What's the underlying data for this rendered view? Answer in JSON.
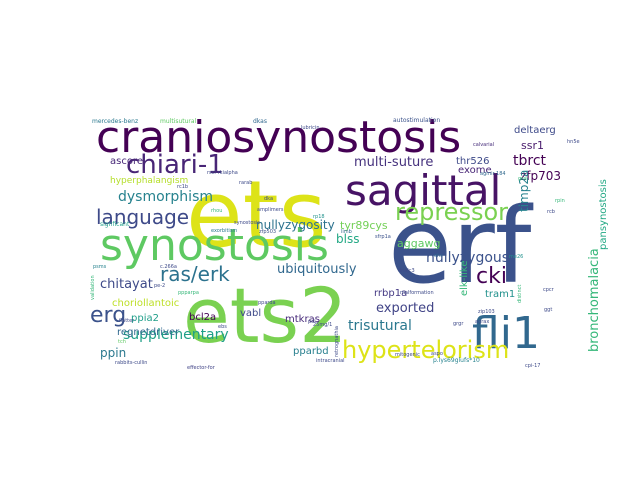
{
  "words": [
    {
      "text": "erf",
      "color": "#3b528b"
    },
    {
      "text": "ets",
      "color": "#dde318"
    },
    {
      "text": "ets2",
      "color": "#7ad151"
    },
    {
      "text": "craniosynostosis",
      "color": "#440154"
    },
    {
      "text": "synostosis",
      "color": "#5ec962"
    },
    {
      "text": "sagittal",
      "color": "#471365"
    },
    {
      "text": "fli1",
      "color": "#31688e"
    },
    {
      "text": "hypertelorism",
      "color": "#dde318"
    },
    {
      "text": "chiari-1",
      "color": "#482576"
    },
    {
      "text": "repressor",
      "color": "#7ad151"
    },
    {
      "text": "language",
      "color": "#3e4a89"
    },
    {
      "text": "ras/erk",
      "color": "#2c728e"
    },
    {
      "text": "erg",
      "color": "#3b528b"
    },
    {
      "text": "cki",
      "color": "#440154"
    },
    {
      "text": "dysmorphism",
      "color": "#26828e"
    },
    {
      "text": "bronchomalacia",
      "color": "#35b779"
    },
    {
      "text": "trisutural",
      "color": "#2a788e"
    },
    {
      "text": "supplementary",
      "color": "#1fa088"
    },
    {
      "text": "nullyzygous",
      "color": "#3b528b"
    },
    {
      "text": "multi-suture",
      "color": "#46327e"
    },
    {
      "text": "ubiquitously",
      "color": "#31688e"
    },
    {
      "text": "tbrct",
      "color": "#440154"
    },
    {
      "text": "exported",
      "color": "#414487"
    },
    {
      "text": "chitayat",
      "color": "#3e4a89"
    },
    {
      "text": "zfp703",
      "color": "#440154"
    },
    {
      "text": "timp2a",
      "color": "#26828e"
    },
    {
      "text": "nullyzygosity",
      "color": "#2c728e"
    },
    {
      "text": "ppin",
      "color": "#2a788e"
    },
    {
      "text": "blss",
      "color": "#22a884"
    },
    {
      "text": "aggawg",
      "color": "#5ec962"
    },
    {
      "text": "tyr89cys",
      "color": "#73d056"
    },
    {
      "text": "ssr1",
      "color": "#481a6c"
    },
    {
      "text": "deltaerg",
      "color": "#3e4a89"
    },
    {
      "text": "ascore",
      "color": "#482878"
    },
    {
      "text": "thr526",
      "color": "#3e4a89"
    },
    {
      "text": "exome",
      "color": "#482576"
    },
    {
      "text": "elk-like",
      "color": "#35b779"
    },
    {
      "text": "hyperphalangism",
      "color": "#b5de2b"
    },
    {
      "text": "regnetdriver",
      "color": "#31688e"
    },
    {
      "text": "ppia2",
      "color": "#1f9e89"
    },
    {
      "text": "choriollantoic",
      "color": "#bddf26"
    },
    {
      "text": "bcl2a",
      "color": "#440154"
    },
    {
      "text": "mtkras",
      "color": "#472a7a"
    },
    {
      "text": "pparbd",
      "color": "#277f8e"
    },
    {
      "text": "rrbp1a",
      "color": "#443983"
    },
    {
      "text": "tram1",
      "color": "#21918c"
    },
    {
      "text": "vabl",
      "color": "#3e4a89"
    },
    {
      "text": "pansynostosis",
      "color": "#22a884"
    },
    {
      "text": "multisutural",
      "color": "#5ec962"
    },
    {
      "text": "mercedes-benz",
      "color": "#2a788e"
    },
    {
      "text": "dkas",
      "color": "#31688e"
    },
    {
      "text": "autostimulation",
      "color": "#3b528b"
    },
    {
      "text": "calvarial",
      "color": "#472d7b"
    },
    {
      "text": "lubricin",
      "color": "#3e4a89"
    },
    {
      "text": "amplimers",
      "color": "#3e4a89"
    },
    {
      "text": "rhou",
      "color": "#35b779"
    },
    {
      "text": "signficant",
      "color": "#1fa088"
    },
    {
      "text": "exorbitism",
      "color": "#2a788e"
    },
    {
      "text": "zfp503",
      "color": "#3b528b"
    },
    {
      "text": "validation",
      "color": "#35b779"
    },
    {
      "text": "psms",
      "color": "#26828e"
    },
    {
      "text": "c.266a",
      "color": "#3e4a89"
    },
    {
      "text": "ppparpa",
      "color": "#35b779"
    },
    {
      "text": "pparda",
      "color": "#3e4a89"
    },
    {
      "text": "pel",
      "color": "#414487"
    },
    {
      "text": "retrognathia",
      "color": "#3e4a89"
    },
    {
      "text": "effector-for",
      "color": "#414487"
    },
    {
      "text": "intracranial",
      "color": "#3e4a89"
    },
    {
      "text": "mitogenic",
      "color": "#3e4a89"
    },
    {
      "text": "p.lys69glufs*10",
      "color": "#26828e"
    },
    {
      "text": "cpi-17",
      "color": "#3e4a89"
    },
    {
      "text": "rabbits-cullin",
      "color": "#3e4a89"
    },
    {
      "text": "flatter",
      "color": "#3e4a89"
    },
    {
      "text": "ebs",
      "color": "#3e4a89"
    },
    {
      "text": "dnajc3",
      "color": "#3e4a89"
    },
    {
      "text": "malformation",
      "color": "#3e4a89"
    },
    {
      "text": "me26",
      "color": "#21918c"
    },
    {
      "text": "ehs",
      "color": "#31688e"
    },
    {
      "text": "sfrp1a",
      "color": "#3b528b"
    },
    {
      "text": "limb",
      "color": "#31688e"
    },
    {
      "text": "rp18",
      "color": "#21918c"
    },
    {
      "text": "25mg/1",
      "color": "#3e4a89"
    },
    {
      "text": "rscl-rkialpha",
      "color": "#3e4a89"
    },
    {
      "text": "agmir-184",
      "color": "#31688e"
    },
    {
      "text": "grai",
      "color": "#35b779"
    },
    {
      "text": "zip103",
      "color": "#3e4a89"
    },
    {
      "text": "distinct",
      "color": "#35b779"
    },
    {
      "text": "grgr",
      "color": "#3e4a89"
    },
    {
      "text": "cpcr",
      "color": "#3e4a89"
    },
    {
      "text": "rarab",
      "color": "#3e4a89"
    },
    {
      "text": "dka",
      "color": "#3e4a89"
    },
    {
      "text": "rcb",
      "color": "#3e4a89"
    },
    {
      "text": "hn5e",
      "color": "#3e4a89"
    },
    {
      "text": "rpin",
      "color": "#35b779"
    },
    {
      "text": "ggt",
      "color": "#3e4a89"
    },
    {
      "text": "rc1b",
      "color": "#3e4a89"
    },
    {
      "text": "aspo",
      "color": "#3e4a89"
    },
    {
      "text": "agrax",
      "color": "#3e4a89"
    },
    {
      "text": "tch",
      "color": "#5ec962"
    },
    {
      "text": "pe-2",
      "color": "#3e4a89"
    },
    {
      "text": "synostosis",
      "color": "#3e4a89"
    }
  ]
}
